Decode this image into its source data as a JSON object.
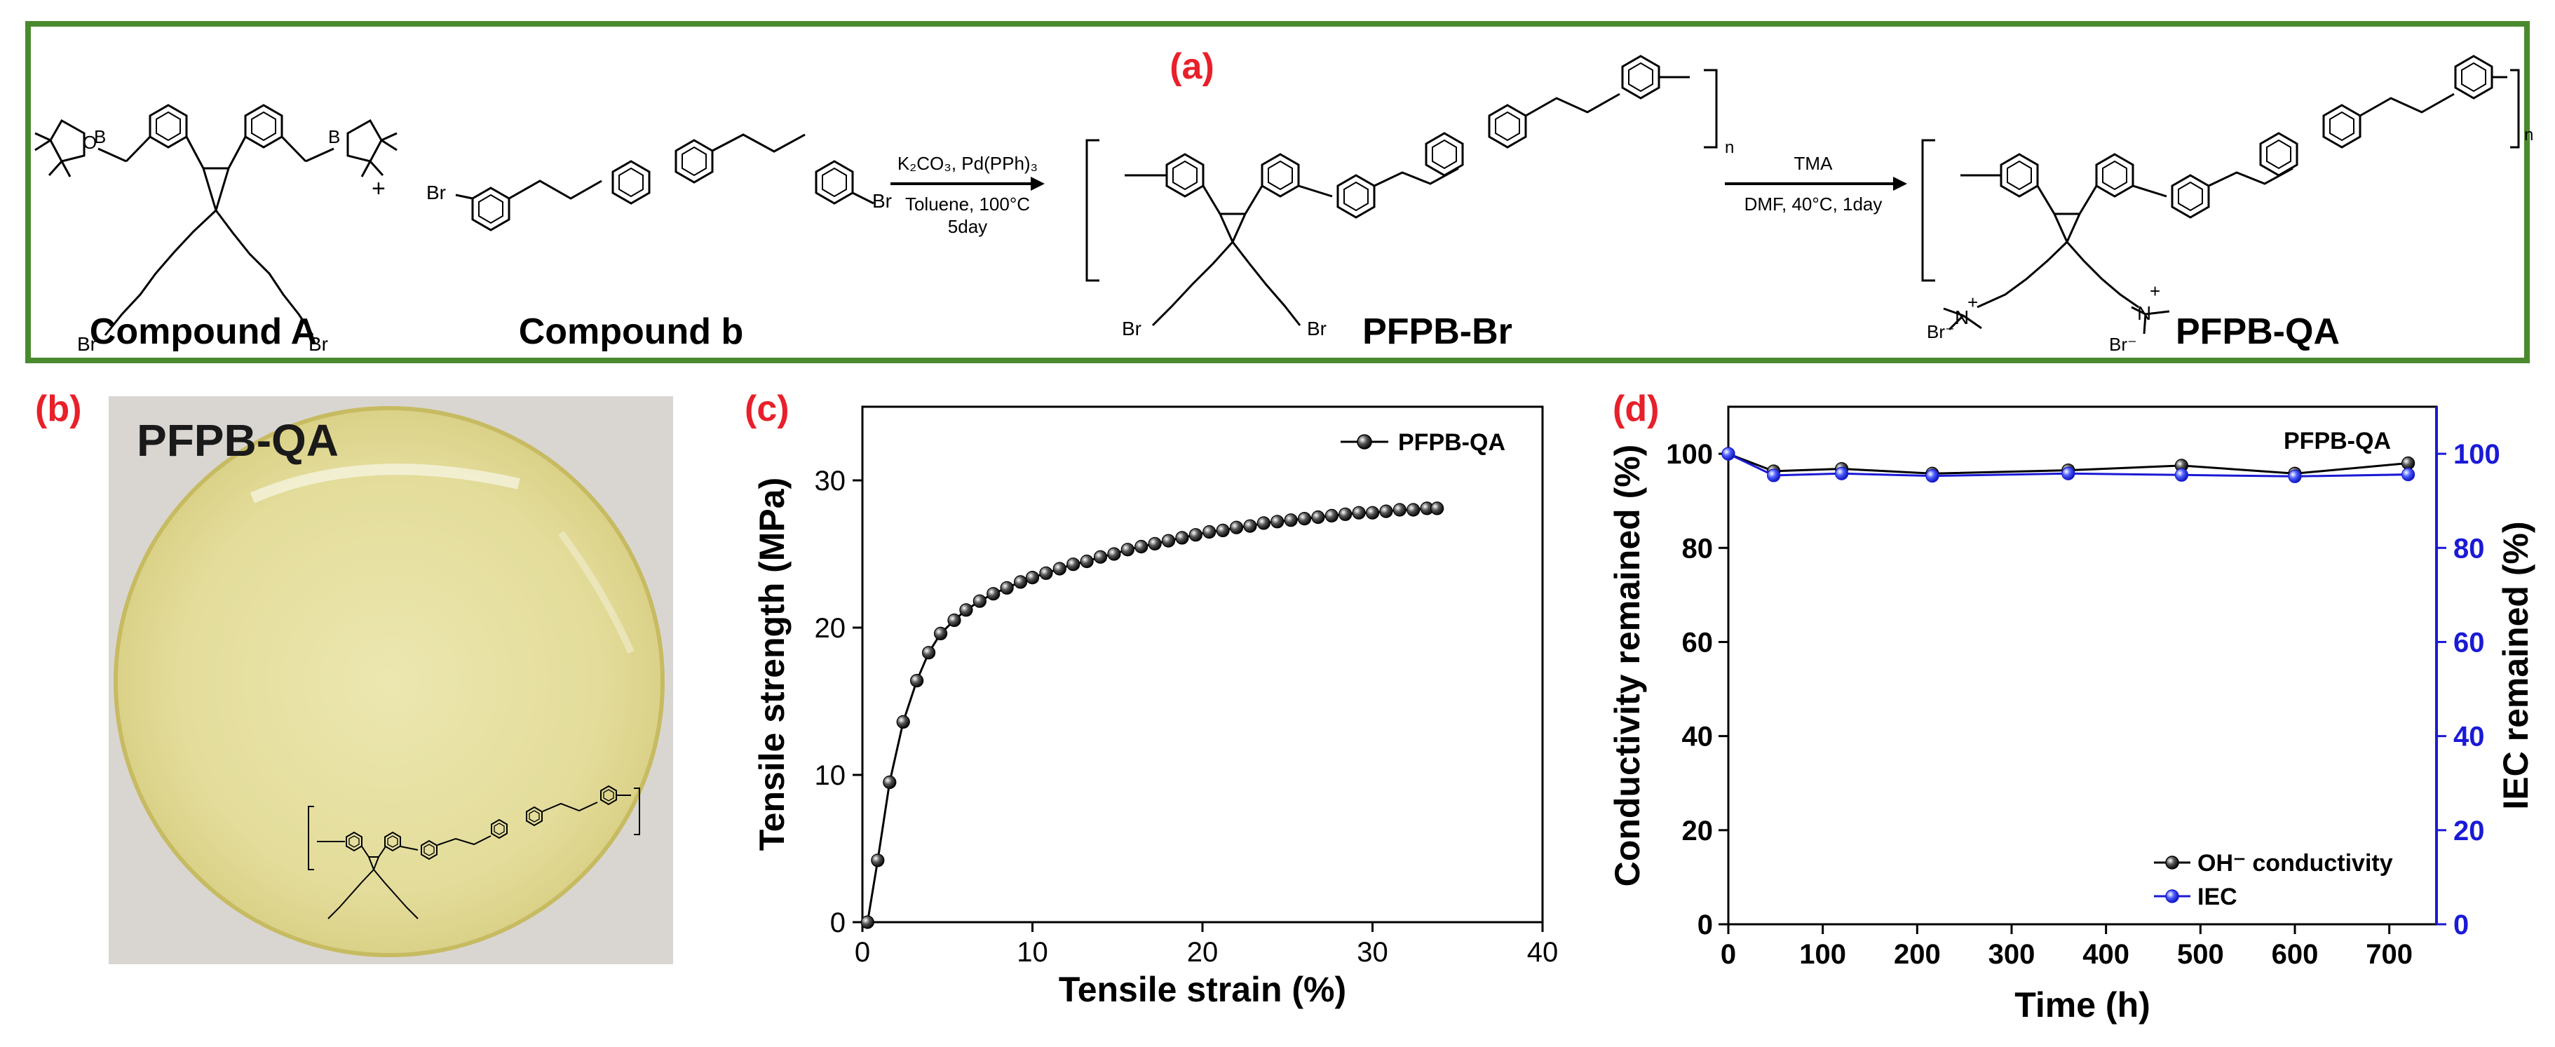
{
  "panels": {
    "a": {
      "tag": "(a)"
    },
    "b": {
      "tag": "(b)",
      "photo_label": "PFPB-QA"
    },
    "c": {
      "tag": "(c)"
    },
    "d": {
      "tag": "(d)"
    }
  },
  "reaction": {
    "compound_a": "Compound A",
    "compound_b": "Compound b",
    "plus": "+",
    "step1_reagents": "K₂CO₃, Pd(PPh)₃",
    "step1_solvent": "Toluene, 100°C",
    "step1_time": "5day",
    "product1": "PFPB-Br",
    "step2_reagent": "TMA",
    "step2_conditions": "DMF, 40°C, 1day",
    "product2": "PFPB-QA",
    "atoms": {
      "br": "Br",
      "b": "B",
      "o": "O",
      "n": "N",
      "n_plus": "+",
      "br_minus": "Br⁻",
      "repeat_n": "n"
    }
  },
  "chart_data": [
    {
      "id": "c",
      "type": "line",
      "title": "",
      "xlabel": "Tensile strain (%)",
      "ylabel": "Tensile strength (MPa)",
      "xlim": [
        0,
        40
      ],
      "ylim": [
        0,
        35
      ],
      "xticks": [
        0,
        10,
        20,
        30,
        40
      ],
      "yticks": [
        0,
        10,
        20,
        30
      ],
      "grid": false,
      "legend": "top-right",
      "series": [
        {
          "name": "PFPB-QA",
          "color": "#000000",
          "x": [
            0.3,
            0.9,
            1.6,
            2.4,
            3.2,
            3.9,
            4.6,
            5.4,
            6.1,
            6.9,
            7.7,
            8.5,
            9.3,
            10.0,
            10.8,
            11.6,
            12.4,
            13.2,
            14.0,
            14.8,
            15.6,
            16.4,
            17.2,
            18.0,
            18.8,
            19.6,
            20.4,
            21.2,
            22.0,
            22.8,
            23.6,
            24.4,
            25.2,
            26.0,
            26.8,
            27.6,
            28.4,
            29.2,
            30.0,
            30.8,
            31.6,
            32.4,
            33.2,
            33.8
          ],
          "y": [
            0,
            4.2,
            9.5,
            13.6,
            16.4,
            18.3,
            19.6,
            20.5,
            21.2,
            21.8,
            22.3,
            22.7,
            23.1,
            23.4,
            23.7,
            24.0,
            24.3,
            24.5,
            24.8,
            25.0,
            25.3,
            25.5,
            25.7,
            25.9,
            26.1,
            26.3,
            26.5,
            26.6,
            26.8,
            26.9,
            27.1,
            27.2,
            27.3,
            27.4,
            27.5,
            27.6,
            27.7,
            27.8,
            27.8,
            27.9,
            28.0,
            28.0,
            28.1,
            28.1
          ]
        }
      ]
    },
    {
      "id": "d",
      "type": "line",
      "title": "",
      "annotation": "PFPB-QA",
      "xlabel": "Time (h)",
      "ylabel": "Conductivity remained (%)",
      "y2label": "IEC remained (%)",
      "xlim": [
        0,
        750
      ],
      "ylim": [
        0,
        110
      ],
      "y2lim": [
        0,
        110
      ],
      "xticks": [
        0,
        100,
        200,
        300,
        400,
        500,
        600,
        700
      ],
      "yticks": [
        0,
        20,
        40,
        60,
        80,
        100
      ],
      "y2ticks": [
        0,
        20,
        40,
        60,
        80,
        100
      ],
      "grid": false,
      "legend": "bottom-right",
      "y2color": "#1a1ad6",
      "series": [
        {
          "name": "OH⁻ conductivity",
          "axis": "left",
          "color": "#000000",
          "x": [
            0,
            48,
            120,
            216,
            360,
            480,
            600,
            720
          ],
          "y": [
            100,
            96.3,
            96.8,
            95.8,
            96.5,
            97.5,
            95.8,
            98.0
          ]
        },
        {
          "name": "IEC",
          "axis": "right",
          "color": "#1a1ad6",
          "x": [
            0,
            48,
            120,
            216,
            360,
            480,
            600,
            720
          ],
          "y": [
            100,
            95.4,
            95.8,
            95.3,
            95.8,
            95.5,
            95.2,
            95.6
          ]
        }
      ]
    }
  ]
}
